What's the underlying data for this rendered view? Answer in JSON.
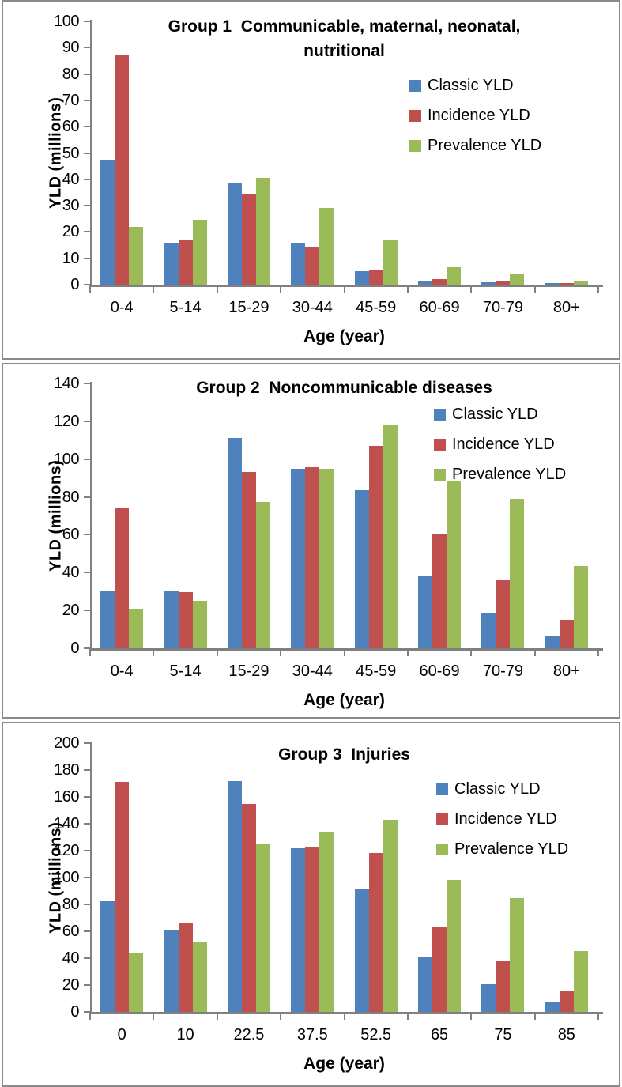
{
  "figure": {
    "background": "#ffffff",
    "panel_border_color": "#8a8a8a",
    "axis_color": "#808080"
  },
  "series_colors": {
    "classic_yld": "#4F81BD",
    "incidence_yld": "#C0504D",
    "prevalence_yld": "#9BBB59"
  },
  "chart_data": [
    {
      "type": "bar",
      "title_lines": [
        "Group 1  Communicable, maternal, neonatal,",
        "nutritional"
      ],
      "xlabel": "Age (year)",
      "ylabel": "YLD (millions)",
      "ylim": [
        0,
        100
      ],
      "ytick_step": 10,
      "grid": false,
      "legend_position": "inside-top-right",
      "categories": [
        "0-4",
        "5-14",
        "15-29",
        "30-44",
        "45-59",
        "60-69",
        "70-79",
        "80+"
      ],
      "series": [
        {
          "name": "Classic YLD",
          "color": "#4F81BD",
          "values": [
            47,
            15.5,
            38.5,
            16,
            5,
            1.5,
            0.8,
            0.5
          ]
        },
        {
          "name": "Incidence YLD",
          "color": "#C0504D",
          "values": [
            87,
            17,
            34.5,
            14.5,
            5.7,
            2,
            1.2,
            0.6
          ]
        },
        {
          "name": "Prevalence YLD",
          "color": "#9BBB59",
          "values": [
            22,
            24.5,
            40.5,
            29,
            17,
            6.5,
            3.9,
            1.5
          ]
        }
      ]
    },
    {
      "type": "bar",
      "title_lines": [
        "Group 2  Noncommunicable diseases"
      ],
      "xlabel": "Age (year)",
      "ylabel": "YLD (millions)",
      "ylim": [
        0,
        140
      ],
      "ytick_step": 20,
      "grid": false,
      "legend_position": "inside-top-right",
      "categories": [
        "0-4",
        "5-14",
        "15-29",
        "30-44",
        "45-59",
        "60-69",
        "70-79",
        "80+"
      ],
      "series": [
        {
          "name": "Classic YLD",
          "color": "#4F81BD",
          "values": [
            30,
            30,
            111,
            95,
            83.5,
            38,
            19,
            6.5
          ]
        },
        {
          "name": "Incidence YLD",
          "color": "#C0504D",
          "values": [
            74,
            29.5,
            93,
            95.5,
            107,
            60,
            36,
            15
          ]
        },
        {
          "name": "Prevalence YLD",
          "color": "#9BBB59",
          "values": [
            21,
            25,
            77.5,
            95,
            118,
            88,
            79,
            43.5
          ]
        }
      ]
    },
    {
      "type": "bar",
      "title_lines": [
        "Group 3  Injuries"
      ],
      "xlabel": "Age (year)",
      "ylabel": "YLD (millions)",
      "ylim": [
        0,
        200
      ],
      "ytick_step": 20,
      "grid": false,
      "legend_position": "inside-top-right",
      "categories": [
        "0",
        "10",
        "22.5",
        "37.5",
        "52.5",
        "65",
        "75",
        "85"
      ],
      "series": [
        {
          "name": "Classic YLD",
          "color": "#4F81BD",
          "values": [
            82.5,
            60.5,
            172,
            121.5,
            92,
            40.5,
            20.5,
            7
          ]
        },
        {
          "name": "Incidence YLD",
          "color": "#C0504D",
          "values": [
            171,
            66,
            154.5,
            123,
            118.5,
            63,
            38,
            16
          ]
        },
        {
          "name": "Prevalence YLD",
          "color": "#9BBB59",
          "values": [
            43.5,
            52.5,
            125.5,
            133.5,
            143,
            98,
            84.5,
            45.5
          ]
        }
      ]
    }
  ]
}
